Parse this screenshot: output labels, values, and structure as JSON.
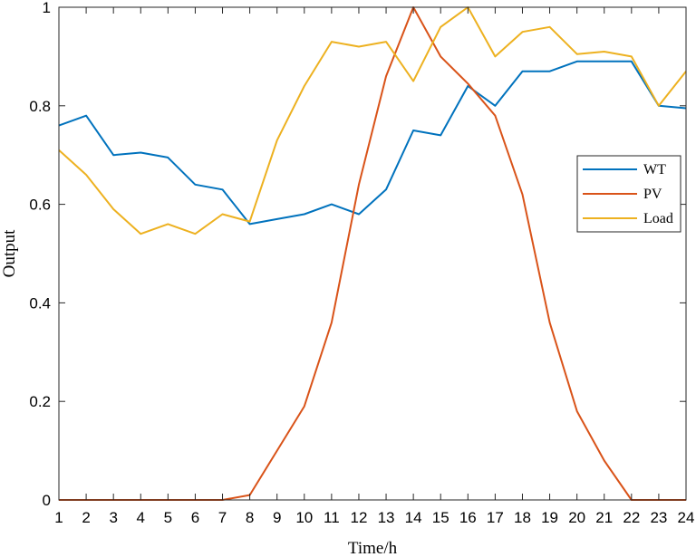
{
  "chart_data": {
    "type": "line",
    "xlabel": "Time/h",
    "ylabel": "Output",
    "xlim": [
      1,
      24
    ],
    "ylim": [
      0,
      1
    ],
    "xticks": [
      1,
      2,
      3,
      4,
      5,
      6,
      7,
      8,
      9,
      10,
      11,
      12,
      13,
      14,
      15,
      16,
      17,
      18,
      19,
      20,
      21,
      22,
      23,
      24
    ],
    "yticks": [
      0,
      0.2,
      0.4,
      0.6,
      0.8,
      1
    ],
    "ytick_labels": [
      "0",
      "0.2",
      "0.4",
      "0.6",
      "0.8",
      "1"
    ],
    "grid": false,
    "legend_position": "right",
    "x": [
      1,
      2,
      3,
      4,
      5,
      6,
      7,
      8,
      9,
      10,
      11,
      12,
      13,
      14,
      15,
      16,
      17,
      18,
      19,
      20,
      21,
      22,
      23,
      24
    ],
    "series": [
      {
        "name": "WT",
        "color": "#0072BD",
        "values": [
          0.76,
          0.78,
          0.7,
          0.705,
          0.695,
          0.64,
          0.63,
          0.56,
          0.57,
          0.58,
          0.6,
          0.58,
          0.63,
          0.75,
          0.74,
          0.84,
          0.8,
          0.87,
          0.87,
          0.89,
          0.89,
          0.89,
          0.8,
          0.795
        ]
      },
      {
        "name": "PV",
        "color": "#D95319",
        "values": [
          0,
          0,
          0,
          0,
          0,
          0,
          0,
          0.01,
          0.1,
          0.19,
          0.36,
          0.64,
          0.86,
          1.0,
          0.9,
          0.845,
          0.78,
          0.62,
          0.36,
          0.18,
          0.08,
          0,
          0,
          0
        ]
      },
      {
        "name": "Load",
        "color": "#EDB120",
        "values": [
          0.71,
          0.66,
          0.59,
          0.54,
          0.56,
          0.54,
          0.58,
          0.565,
          0.73,
          0.84,
          0.93,
          0.92,
          0.93,
          0.85,
          0.96,
          1.0,
          0.9,
          0.95,
          0.96,
          0.905,
          0.91,
          0.9,
          0.8,
          0.87
        ]
      }
    ]
  }
}
